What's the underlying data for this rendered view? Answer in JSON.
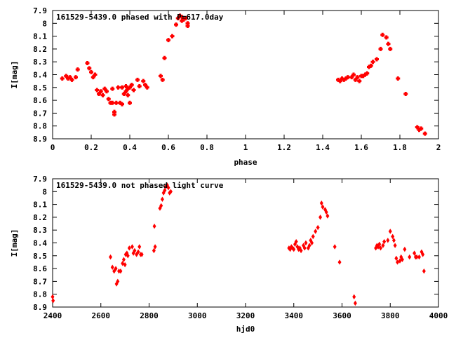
{
  "chart_data": [
    {
      "type": "scatter",
      "title": "161529-5439.0 phased with P=617.0day",
      "xlabel": "phase",
      "ylabel": "I[mag]",
      "xlim": [
        0,
        2
      ],
      "ylim": [
        8.9,
        7.9
      ],
      "y_inverted": true,
      "xticks": [
        "0",
        "0.2",
        "0.4",
        "0.6",
        "0.8",
        "1",
        "1.2",
        "1.4",
        "1.6",
        "1.8",
        "2"
      ],
      "yticks": [
        "7.9",
        "8",
        "8.1",
        "8.2",
        "8.3",
        "8.4",
        "8.5",
        "8.6",
        "8.7",
        "8.8",
        "8.9"
      ],
      "marker_color": "#ff0000",
      "marker": "plus",
      "grid": false,
      "x": [
        0.05,
        0.07,
        0.08,
        0.09,
        0.1,
        0.12,
        0.13,
        0.18,
        0.19,
        0.2,
        0.21,
        0.22,
        0.23,
        0.24,
        0.25,
        0.26,
        0.27,
        0.28,
        0.29,
        0.3,
        0.31,
        0.31,
        0.32,
        0.32,
        0.33,
        0.34,
        0.35,
        0.36,
        0.36,
        0.37,
        0.38,
        0.38,
        0.39,
        0.39,
        0.4,
        0.4,
        0.41,
        0.42,
        0.44,
        0.45,
        0.47,
        0.48,
        0.49,
        0.56,
        0.57,
        0.58,
        0.6,
        0.62,
        0.64,
        0.65,
        0.66,
        0.67,
        0.67,
        0.68,
        0.69,
        0.7,
        0.7,
        1.48,
        1.49,
        1.5,
        1.51,
        1.52,
        1.53,
        1.55,
        1.56,
        1.57,
        1.58,
        1.59,
        1.6,
        1.61,
        1.62,
        1.63,
        1.64,
        1.65,
        1.66,
        1.68,
        1.7,
        1.71,
        1.73,
        1.74,
        1.75,
        1.79,
        1.83,
        1.89,
        1.9,
        1.91,
        1.93
      ],
      "y": [
        8.43,
        8.41,
        8.43,
        8.42,
        8.44,
        8.42,
        8.36,
        8.31,
        8.35,
        8.38,
        8.42,
        8.4,
        8.52,
        8.55,
        8.53,
        8.56,
        8.51,
        8.53,
        8.59,
        8.62,
        8.62,
        8.51,
        8.69,
        8.71,
        8.62,
        8.5,
        8.62,
        8.5,
        8.63,
        8.55,
        8.49,
        8.53,
        8.56,
        8.51,
        8.62,
        8.5,
        8.48,
        8.52,
        8.44,
        8.49,
        8.45,
        8.48,
        8.5,
        8.41,
        8.44,
        8.27,
        8.13,
        8.1,
        8.01,
        7.96,
        7.94,
        7.95,
        7.98,
        7.97,
        7.96,
        8.0,
        8.02,
        8.44,
        8.45,
        8.43,
        8.44,
        8.43,
        8.42,
        8.42,
        8.4,
        8.44,
        8.42,
        8.45,
        8.41,
        8.41,
        8.4,
        8.39,
        8.34,
        8.33,
        8.3,
        8.28,
        8.2,
        8.09,
        8.11,
        8.16,
        8.2,
        8.43,
        8.55,
        8.81,
        8.83,
        8.82,
        8.86
      ]
    },
    {
      "type": "scatter",
      "title": "161529-5439.0 not phased light curve",
      "xlabel": "hjd0",
      "ylabel": "I[mag]",
      "xlim": [
        2400,
        4000
      ],
      "ylim": [
        8.9,
        7.9
      ],
      "y_inverted": true,
      "xticks": [
        "2400",
        "2600",
        "2800",
        "3000",
        "3200",
        "3400",
        "3600",
        "3800",
        "4000"
      ],
      "yticks": [
        "7.9",
        "8",
        "8.1",
        "8.2",
        "8.3",
        "8.4",
        "8.5",
        "8.6",
        "8.7",
        "8.8",
        "8.9"
      ],
      "marker_color": "#ff0000",
      "marker": "diamond",
      "grid": false,
      "x": [
        2400,
        2402,
        2640,
        2648,
        2655,
        2662,
        2665,
        2670,
        2675,
        2682,
        2690,
        2695,
        2700,
        2703,
        2708,
        2712,
        2718,
        2730,
        2735,
        2740,
        2748,
        2755,
        2760,
        2765,
        2770,
        2820,
        2822,
        2825,
        2845,
        2850,
        2855,
        2860,
        2865,
        2870,
        2875,
        2880,
        2885,
        2890,
        3380,
        3385,
        3390,
        3395,
        3400,
        3405,
        3410,
        3415,
        3420,
        3425,
        3430,
        3440,
        3445,
        3450,
        3460,
        3465,
        3470,
        3475,
        3480,
        3490,
        3500,
        3510,
        3515,
        3520,
        3530,
        3535,
        3540,
        3570,
        3590,
        3650,
        3655,
        3740,
        3745,
        3750,
        3755,
        3760,
        3770,
        3775,
        3790,
        3800,
        3810,
        3815,
        3820,
        3825,
        3830,
        3840,
        3845,
        3850,
        3860,
        3880,
        3900,
        3905,
        3910,
        3920,
        3930,
        3935,
        3940
      ],
      "y": [
        8.82,
        8.85,
        8.51,
        8.59,
        8.62,
        8.6,
        8.72,
        8.7,
        8.62,
        8.62,
        8.56,
        8.53,
        8.57,
        8.49,
        8.48,
        8.5,
        8.44,
        8.43,
        8.48,
        8.46,
        8.49,
        8.47,
        8.43,
        8.49,
        8.49,
        8.46,
        8.27,
        8.43,
        8.13,
        8.11,
        8.06,
        8.01,
        7.99,
        7.96,
        7.95,
        7.97,
        8.01,
        8.0,
        8.44,
        8.45,
        8.43,
        8.44,
        8.45,
        8.41,
        8.39,
        8.43,
        8.45,
        8.44,
        8.46,
        8.42,
        8.44,
        8.4,
        8.44,
        8.42,
        8.38,
        8.4,
        8.35,
        8.31,
        8.28,
        8.2,
        8.09,
        8.12,
        8.14,
        8.16,
        8.19,
        8.43,
        8.55,
        8.82,
        8.87,
        8.44,
        8.42,
        8.43,
        8.41,
        8.44,
        8.42,
        8.39,
        8.38,
        8.31,
        8.35,
        8.38,
        8.42,
        8.52,
        8.55,
        8.54,
        8.51,
        8.53,
        8.45,
        8.51,
        8.48,
        8.51,
        8.51,
        8.51,
        8.47,
        8.49,
        8.62
      ]
    }
  ]
}
